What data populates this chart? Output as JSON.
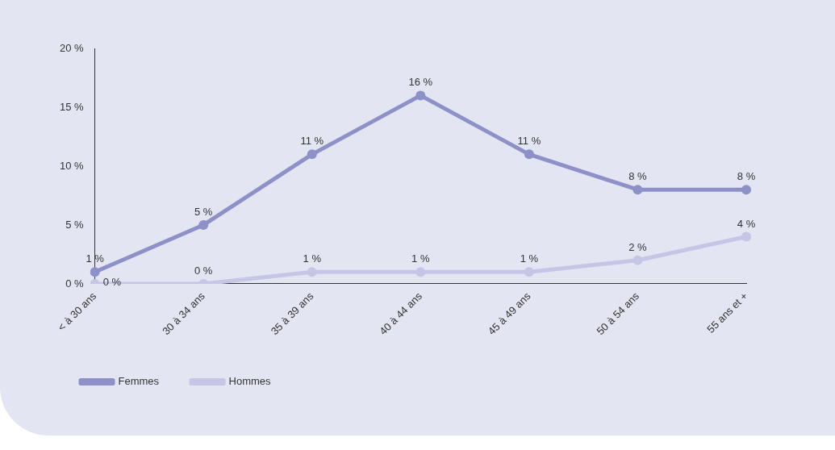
{
  "chart_data": {
    "type": "line",
    "categories": [
      "< à 30 ans",
      "30 à 34 ans",
      "35 à 39 ans",
      "40 à 44 ans",
      "45 à 49 ans",
      "50 à 54 ans",
      "55 ans et +"
    ],
    "series": [
      {
        "name": "Femmes",
        "color": "#8e90c8",
        "values": [
          1,
          5,
          11,
          16,
          11,
          8,
          8
        ],
        "value_labels": [
          "1 %",
          "5 %",
          "11 %",
          "16 %",
          "11 %",
          "8 %",
          "8 %"
        ]
      },
      {
        "name": "Hommes",
        "color": "#c5c6e6",
        "values": [
          0,
          0,
          1,
          1,
          1,
          2,
          4
        ],
        "value_labels": [
          "0 %",
          "0 %",
          "1 %",
          "1 %",
          "1 %",
          "2 %",
          "4 %"
        ]
      }
    ],
    "ylim": [
      0,
      20
    ],
    "yticks": [
      {
        "value": 0,
        "label": "0 %"
      },
      {
        "value": 5,
        "label": "5 %"
      },
      {
        "value": 10,
        "label": "10 %"
      },
      {
        "value": 15,
        "label": "15 %"
      },
      {
        "value": 20,
        "label": "20 %"
      }
    ],
    "grid": false,
    "legend": "bottom left",
    "marker": "circle",
    "line_style": "solid"
  }
}
